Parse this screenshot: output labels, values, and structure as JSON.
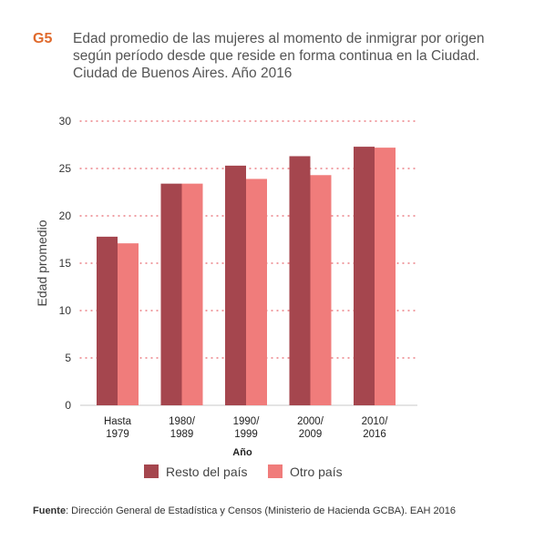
{
  "figure": {
    "label": "G5",
    "title_lines": [
      "Edad promedio de las mujeres al momento de inmigrar por origen",
      "según período desde que reside en forma continua en la Ciudad.",
      "Ciudad de Buenos  Aires. Año 2016"
    ]
  },
  "source": {
    "label": "Fuente",
    "text": ": Dirección General de Estadística y Censos (Ministerio de Hacienda GCBA). EAH 2016"
  },
  "chart_data": {
    "type": "bar",
    "title": "Edad promedio de las mujeres al momento de inmigrar por origen según período desde que reside en forma continua en la Ciudad. Ciudad de Buenos  Aires. Año 2016",
    "xlabel": "Año",
    "ylabel": "Edad promedio",
    "ylim": [
      0,
      30
    ],
    "yticks": [
      "0",
      "5",
      "10",
      "15",
      "20",
      "25",
      "30"
    ],
    "grid": true,
    "legend_position": "bottom",
    "categories": [
      [
        "Hasta",
        "1979"
      ],
      [
        "1980/",
        "1989"
      ],
      [
        "1990/",
        "1999"
      ],
      [
        "2000/",
        "2009"
      ],
      [
        "2010/",
        "2016"
      ]
    ],
    "series": [
      {
        "name": "Resto del país",
        "color": "#a5464e",
        "values": [
          17.8,
          23.4,
          25.3,
          26.3,
          27.3
        ]
      },
      {
        "name": "Otro país",
        "color": "#f07c7b",
        "values": [
          17.1,
          23.4,
          23.9,
          24.3,
          27.2
        ]
      }
    ]
  }
}
